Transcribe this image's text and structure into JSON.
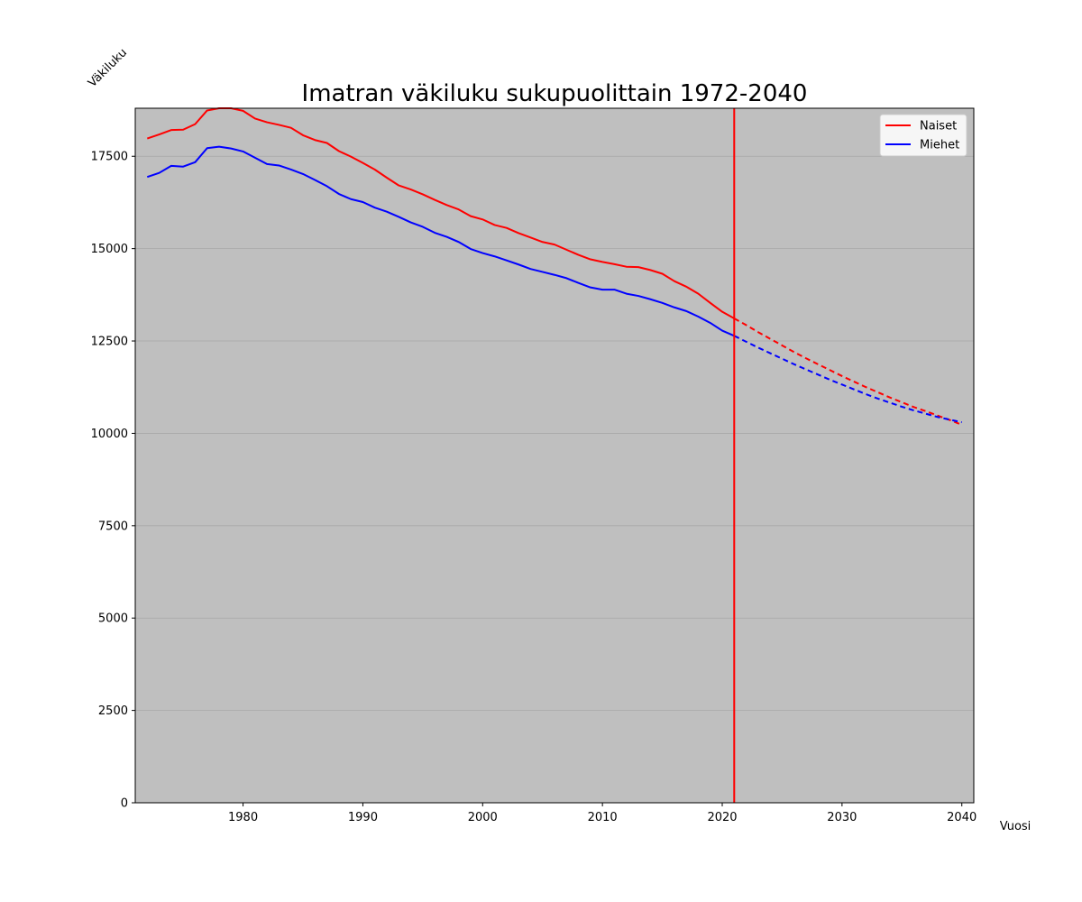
{
  "chart_data": {
    "type": "line",
    "title": "Imatran väkiluku sukupuolittain 1972-2040",
    "xlabel": "Vuosi",
    "ylabel": "Väkiluku",
    "xlim": [
      1971,
      2041
    ],
    "ylim": [
      0,
      18800
    ],
    "xticks": [
      1980,
      1990,
      2000,
      2010,
      2020,
      2030,
      2040
    ],
    "yticks": [
      0,
      2500,
      5000,
      7500,
      10000,
      12500,
      15000,
      17500
    ],
    "grid": "horizontal",
    "background_color": "#bfbfbf",
    "legend_position": "top-right",
    "vertical_marker": {
      "x": 2021,
      "color": "#ff0000"
    },
    "series": [
      {
        "name": "Naiset",
        "color": "#ff0000",
        "historical": {
          "x": [
            1972,
            1973,
            1974,
            1975,
            1976,
            1977,
            1978,
            1979,
            1980,
            1981,
            1982,
            1983,
            1984,
            1985,
            1986,
            1987,
            1988,
            1989,
            1990,
            1991,
            1992,
            1993,
            1994,
            1995,
            1996,
            1997,
            1998,
            1999,
            2000,
            2001,
            2002,
            2003,
            2004,
            2005,
            2006,
            2007,
            2008,
            2009,
            2010,
            2011,
            2012,
            2013,
            2014,
            2015,
            2016,
            2017,
            2018,
            2019,
            2020,
            2021
          ],
          "y": [
            17980,
            18090,
            18210,
            18220,
            18370,
            18740,
            18800,
            18800,
            18730,
            18520,
            18420,
            18350,
            18270,
            18070,
            17940,
            17860,
            17640,
            17490,
            17320,
            17140,
            16920,
            16710,
            16600,
            16470,
            16320,
            16180,
            16060,
            15880,
            15790,
            15640,
            15560,
            15420,
            15300,
            15180,
            15110,
            14970,
            14830,
            14710,
            14640,
            14580,
            14510,
            14500,
            14420,
            14320,
            14120,
            13970,
            13780,
            13530,
            13290,
            13110
          ]
        },
        "projection": {
          "x": [
            2021,
            2022,
            2023,
            2024,
            2025,
            2026,
            2027,
            2028,
            2029,
            2030,
            2031,
            2032,
            2033,
            2034,
            2035,
            2036,
            2037,
            2038,
            2039,
            2040
          ],
          "y": [
            13110,
            12930,
            12740,
            12560,
            12380,
            12200,
            12030,
            11870,
            11710,
            11550,
            11400,
            11250,
            11110,
            10970,
            10840,
            10710,
            10600,
            10480,
            10360,
            10230
          ]
        }
      },
      {
        "name": "Miehet",
        "color": "#0000ff",
        "historical": {
          "x": [
            1972,
            1973,
            1974,
            1975,
            1976,
            1977,
            1978,
            1979,
            1980,
            1981,
            1982,
            1983,
            1984,
            1985,
            1986,
            1987,
            1988,
            1989,
            1990,
            1991,
            1992,
            1993,
            1994,
            1995,
            1996,
            1997,
            1998,
            1999,
            2000,
            2001,
            2002,
            2003,
            2004,
            2005,
            2006,
            2007,
            2008,
            2009,
            2010,
            2011,
            2012,
            2013,
            2014,
            2015,
            2016,
            2017,
            2018,
            2019,
            2020,
            2021
          ],
          "y": [
            16940,
            17050,
            17240,
            17220,
            17340,
            17720,
            17760,
            17710,
            17630,
            17460,
            17290,
            17250,
            17140,
            17020,
            16860,
            16690,
            16480,
            16340,
            16260,
            16110,
            16000,
            15860,
            15710,
            15590,
            15430,
            15320,
            15180,
            14990,
            14880,
            14790,
            14680,
            14570,
            14450,
            14370,
            14290,
            14200,
            14070,
            13950,
            13890,
            13890,
            13780,
            13720,
            13630,
            13530,
            13410,
            13310,
            13160,
            12990,
            12780,
            12640
          ]
        },
        "projection": {
          "x": [
            2021,
            2022,
            2023,
            2024,
            2025,
            2026,
            2027,
            2028,
            2029,
            2030,
            2031,
            2032,
            2033,
            2034,
            2035,
            2036,
            2037,
            2038,
            2039,
            2040
          ],
          "y": [
            12640,
            12480,
            12320,
            12170,
            12020,
            11870,
            11730,
            11590,
            11450,
            11320,
            11190,
            11060,
            10940,
            10830,
            10720,
            10620,
            10530,
            10440,
            10370,
            10300
          ]
        }
      }
    ]
  }
}
